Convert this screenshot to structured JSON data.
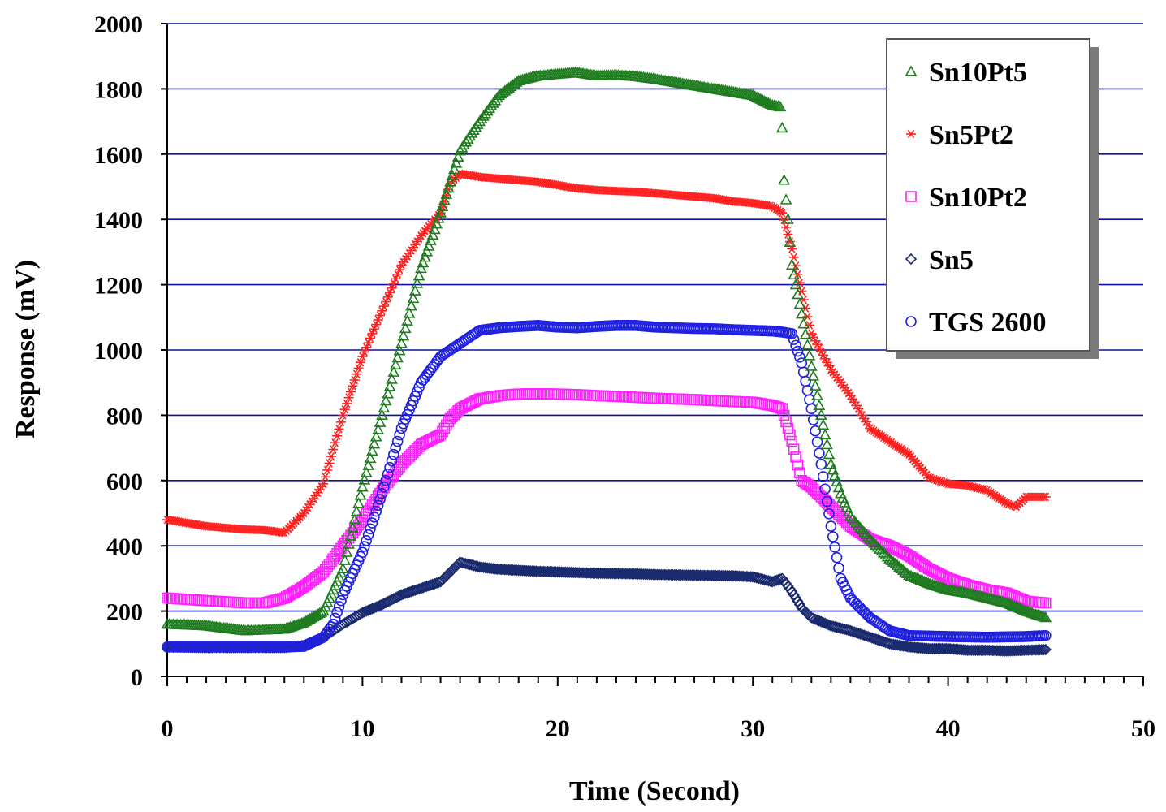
{
  "chart_data": {
    "type": "scatter",
    "title": "",
    "xlabel": "Time (Second)",
    "ylabel": "Response (mV)",
    "xlim": [
      0,
      50
    ],
    "ylim": [
      0,
      2000
    ],
    "xticks": [
      0,
      10,
      20,
      30,
      40,
      50
    ],
    "yticks": [
      0,
      200,
      400,
      600,
      800,
      1000,
      1200,
      1400,
      1600,
      1800,
      2000
    ],
    "grid": "horizontal",
    "legend_position": "top-right",
    "series": [
      {
        "name": "Sn10Pt5",
        "marker": "triangle",
        "color": "#1e7b1e",
        "points": [
          [
            0,
            160
          ],
          [
            2,
            155
          ],
          [
            4,
            140
          ],
          [
            6,
            145
          ],
          [
            7,
            165
          ],
          [
            8,
            200
          ],
          [
            9,
            330
          ],
          [
            10,
            580
          ],
          [
            11,
            800
          ],
          [
            12,
            1020
          ],
          [
            13,
            1250
          ],
          [
            14,
            1420
          ],
          [
            15,
            1610
          ],
          [
            16,
            1700
          ],
          [
            17,
            1780
          ],
          [
            18,
            1825
          ],
          [
            19,
            1840
          ],
          [
            20,
            1845
          ],
          [
            21,
            1850
          ],
          [
            22,
            1840
          ],
          [
            23,
            1842
          ],
          [
            24,
            1838
          ],
          [
            25,
            1830
          ],
          [
            26,
            1820
          ],
          [
            27,
            1810
          ],
          [
            28,
            1800
          ],
          [
            29,
            1790
          ],
          [
            30,
            1780
          ],
          [
            31,
            1750
          ],
          [
            31.4,
            1745
          ],
          [
            31.5,
            1680
          ],
          [
            31.6,
            1520
          ],
          [
            31.8,
            1400
          ],
          [
            32,
            1260
          ],
          [
            32.3,
            1170
          ],
          [
            32.6,
            1080
          ],
          [
            33,
            950
          ],
          [
            33.5,
            800
          ],
          [
            34,
            650
          ],
          [
            34.5,
            560
          ],
          [
            35,
            490
          ],
          [
            36,
            420
          ],
          [
            37,
            360
          ],
          [
            38,
            310
          ],
          [
            39,
            285
          ],
          [
            40,
            265
          ],
          [
            41,
            255
          ],
          [
            42,
            240
          ],
          [
            43,
            225
          ],
          [
            44,
            200
          ],
          [
            45,
            180
          ]
        ]
      },
      {
        "name": "Sn5Pt2",
        "marker": "star",
        "color": "#ff2020",
        "points": [
          [
            0,
            480
          ],
          [
            2,
            460
          ],
          [
            4,
            450
          ],
          [
            5,
            448
          ],
          [
            6,
            440
          ],
          [
            7,
            500
          ],
          [
            8,
            590
          ],
          [
            9,
            800
          ],
          [
            10,
            980
          ],
          [
            11,
            1120
          ],
          [
            12,
            1260
          ],
          [
            13,
            1350
          ],
          [
            14,
            1420
          ],
          [
            14.5,
            1510
          ],
          [
            15,
            1540
          ],
          [
            16,
            1530
          ],
          [
            17,
            1525
          ],
          [
            18,
            1520
          ],
          [
            19,
            1515
          ],
          [
            20,
            1505
          ],
          [
            21,
            1495
          ],
          [
            22,
            1490
          ],
          [
            23,
            1487
          ],
          [
            24,
            1485
          ],
          [
            25,
            1480
          ],
          [
            26,
            1475
          ],
          [
            27,
            1470
          ],
          [
            28,
            1465
          ],
          [
            29,
            1455
          ],
          [
            30,
            1450
          ],
          [
            31,
            1440
          ],
          [
            31.5,
            1420
          ],
          [
            32,
            1310
          ],
          [
            32.5,
            1180
          ],
          [
            33,
            1050
          ],
          [
            34,
            940
          ],
          [
            35,
            860
          ],
          [
            36,
            760
          ],
          [
            37,
            720
          ],
          [
            38,
            680
          ],
          [
            39,
            610
          ],
          [
            40,
            590
          ],
          [
            41,
            585
          ],
          [
            42,
            570
          ],
          [
            43,
            530
          ],
          [
            43.5,
            520
          ],
          [
            44,
            550
          ],
          [
            45,
            550
          ]
        ]
      },
      {
        "name": "Sn10Pt2",
        "marker": "square",
        "color": "#ff22ff",
        "points": [
          [
            0,
            240
          ],
          [
            2,
            232
          ],
          [
            4,
            225
          ],
          [
            5,
            225
          ],
          [
            6,
            240
          ],
          [
            7,
            275
          ],
          [
            8,
            320
          ],
          [
            9,
            400
          ],
          [
            10,
            480
          ],
          [
            11,
            570
          ],
          [
            12,
            650
          ],
          [
            13,
            710
          ],
          [
            14,
            740
          ],
          [
            14.5,
            790
          ],
          [
            15,
            820
          ],
          [
            16,
            850
          ],
          [
            17,
            860
          ],
          [
            18,
            865
          ],
          [
            19,
            866
          ],
          [
            20,
            865
          ],
          [
            21,
            863
          ],
          [
            22,
            860
          ],
          [
            23,
            858
          ],
          [
            24,
            855
          ],
          [
            25,
            852
          ],
          [
            26,
            850
          ],
          [
            27,
            848
          ],
          [
            28,
            845
          ],
          [
            29,
            842
          ],
          [
            30,
            840
          ],
          [
            31,
            830
          ],
          [
            31.5,
            820
          ],
          [
            32,
            720
          ],
          [
            32.5,
            600
          ],
          [
            33,
            580
          ],
          [
            34,
            520
          ],
          [
            35,
            460
          ],
          [
            36,
            420
          ],
          [
            37,
            400
          ],
          [
            38,
            370
          ],
          [
            39,
            330
          ],
          [
            40,
            300
          ],
          [
            41,
            280
          ],
          [
            42,
            265
          ],
          [
            43,
            255
          ],
          [
            44,
            230
          ],
          [
            45,
            225
          ]
        ]
      },
      {
        "name": "Sn5",
        "marker": "diamond",
        "color": "#1a2a6e",
        "points": [
          [
            0,
            90
          ],
          [
            2,
            88
          ],
          [
            4,
            88
          ],
          [
            6,
            88
          ],
          [
            7,
            95
          ],
          [
            8,
            120
          ],
          [
            9,
            160
          ],
          [
            10,
            195
          ],
          [
            11,
            220
          ],
          [
            12,
            250
          ],
          [
            13,
            270
          ],
          [
            14,
            290
          ],
          [
            15,
            350
          ],
          [
            16,
            335
          ],
          [
            17,
            328
          ],
          [
            18,
            325
          ],
          [
            19,
            322
          ],
          [
            20,
            320
          ],
          [
            21,
            318
          ],
          [
            22,
            316
          ],
          [
            23,
            315
          ],
          [
            24,
            314
          ],
          [
            25,
            312
          ],
          [
            26,
            311
          ],
          [
            27,
            310
          ],
          [
            28,
            309
          ],
          [
            29,
            308
          ],
          [
            30,
            305
          ],
          [
            31,
            290
          ],
          [
            31.5,
            300
          ],
          [
            32,
            260
          ],
          [
            32.5,
            210
          ],
          [
            33,
            180
          ],
          [
            34,
            155
          ],
          [
            35,
            140
          ],
          [
            36,
            120
          ],
          [
            37,
            100
          ],
          [
            38,
            90
          ],
          [
            39,
            85
          ],
          [
            40,
            85
          ],
          [
            41,
            80
          ],
          [
            42,
            80
          ],
          [
            43,
            78
          ],
          [
            44,
            80
          ],
          [
            45,
            82
          ]
        ]
      },
      {
        "name": "TGS 2600",
        "marker": "circle",
        "color": "#2020e0",
        "points": [
          [
            0,
            90
          ],
          [
            2,
            90
          ],
          [
            4,
            90
          ],
          [
            6,
            90
          ],
          [
            7,
            92
          ],
          [
            8,
            120
          ],
          [
            8.5,
            160
          ],
          [
            9,
            250
          ],
          [
            10,
            380
          ],
          [
            11,
            560
          ],
          [
            12,
            760
          ],
          [
            13,
            900
          ],
          [
            14,
            980
          ],
          [
            15,
            1020
          ],
          [
            16,
            1060
          ],
          [
            17,
            1068
          ],
          [
            18,
            1072
          ],
          [
            19,
            1075
          ],
          [
            20,
            1070
          ],
          [
            21,
            1068
          ],
          [
            22,
            1072
          ],
          [
            23,
            1075
          ],
          [
            24,
            1075
          ],
          [
            25,
            1070
          ],
          [
            26,
            1068
          ],
          [
            27,
            1066
          ],
          [
            28,
            1065
          ],
          [
            29,
            1062
          ],
          [
            30,
            1060
          ],
          [
            31,
            1058
          ],
          [
            31.5,
            1055
          ],
          [
            32,
            1050
          ],
          [
            32.5,
            960
          ],
          [
            33,
            820
          ],
          [
            33.5,
            650
          ],
          [
            34,
            460
          ],
          [
            34.5,
            300
          ],
          [
            35,
            240
          ],
          [
            36,
            180
          ],
          [
            37,
            140
          ],
          [
            38,
            125
          ],
          [
            40,
            122
          ],
          [
            42,
            120
          ],
          [
            44,
            122
          ],
          [
            45,
            125
          ]
        ]
      }
    ]
  }
}
